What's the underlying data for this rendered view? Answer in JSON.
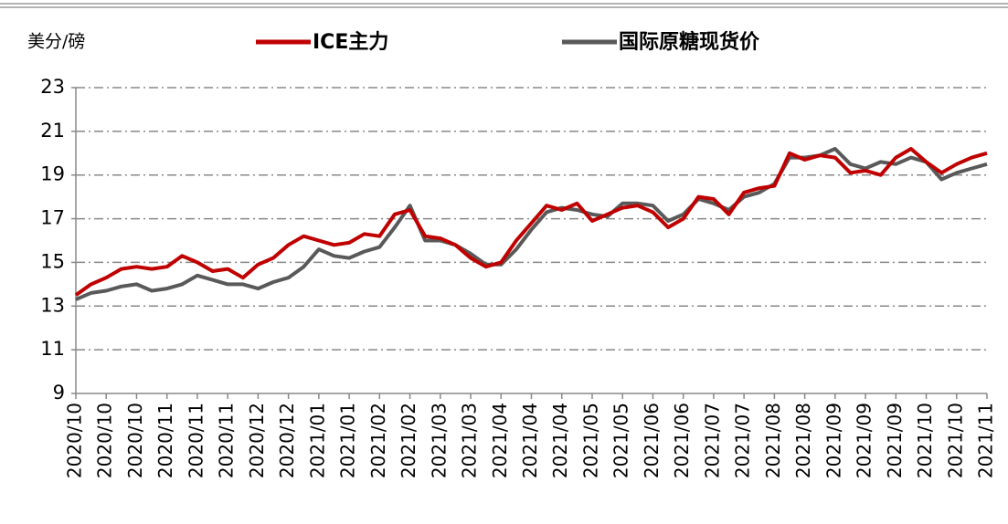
{
  "chart_data": {
    "type": "line",
    "y_axis_label": "美分/磅",
    "categories": [
      "2020/10",
      null,
      "2020/10",
      null,
      "2020/10",
      null,
      "2020/11",
      null,
      "2020/11",
      null,
      "2020/11",
      null,
      "2020/12",
      null,
      "2020/12",
      null,
      "2021/01",
      null,
      "2021/01",
      null,
      "2021/02",
      null,
      "2021/02",
      null,
      "2021/03",
      null,
      "2021/03",
      null,
      "2021/04",
      null,
      "2021/04",
      null,
      "2021/04",
      null,
      "2021/05",
      null,
      "2021/05",
      null,
      "2021/06",
      null,
      "2021/06",
      null,
      "2021/07",
      null,
      "2021/07",
      null,
      "2021/08",
      null,
      "2021/08",
      null,
      "2021/09",
      null,
      "2021/09",
      null,
      "2021/09",
      null,
      "2021/10",
      null,
      "2021/10",
      null,
      "2021/11"
    ],
    "series": [
      {
        "name": "ICE主力",
        "color": "#c00000",
        "values": [
          13.5,
          14.0,
          14.3,
          14.7,
          14.8,
          14.7,
          14.8,
          15.3,
          15.0,
          14.6,
          14.7,
          14.3,
          14.9,
          15.2,
          15.8,
          16.2,
          16.0,
          15.8,
          15.9,
          16.3,
          16.2,
          17.2,
          17.4,
          16.2,
          16.1,
          15.8,
          15.2,
          14.8,
          15.0,
          16.0,
          16.8,
          17.6,
          17.4,
          17.7,
          16.9,
          17.2,
          17.5,
          17.6,
          17.3,
          16.6,
          17.0,
          18.0,
          17.9,
          17.2,
          18.2,
          18.4,
          18.5,
          20.0,
          19.7,
          19.9,
          19.8,
          19.1,
          19.2,
          19.0,
          19.8,
          20.2,
          19.6,
          19.1,
          19.5,
          19.8,
          20.0
        ]
      },
      {
        "name": "国际原糖现货价",
        "color": "#595959",
        "values": [
          13.3,
          13.6,
          13.7,
          13.9,
          14.0,
          13.7,
          13.8,
          14.0,
          14.4,
          14.2,
          14.0,
          14.0,
          13.8,
          14.1,
          14.3,
          14.8,
          15.6,
          15.3,
          15.2,
          15.5,
          15.7,
          16.6,
          17.6,
          16.0,
          16.0,
          15.8,
          15.4,
          14.9,
          14.9,
          15.6,
          16.5,
          17.3,
          17.5,
          17.4,
          17.2,
          17.1,
          17.7,
          17.7,
          17.6,
          16.9,
          17.2,
          17.9,
          17.7,
          17.4,
          18.0,
          18.2,
          18.6,
          19.8,
          19.8,
          19.9,
          20.2,
          19.5,
          19.3,
          19.6,
          19.5,
          19.8,
          19.6,
          18.8,
          19.1,
          19.3,
          19.5
        ]
      }
    ],
    "ylim": [
      9,
      23
    ],
    "yticks": [
      9,
      11,
      13,
      15,
      17,
      19,
      21,
      23
    ],
    "grid": true
  }
}
